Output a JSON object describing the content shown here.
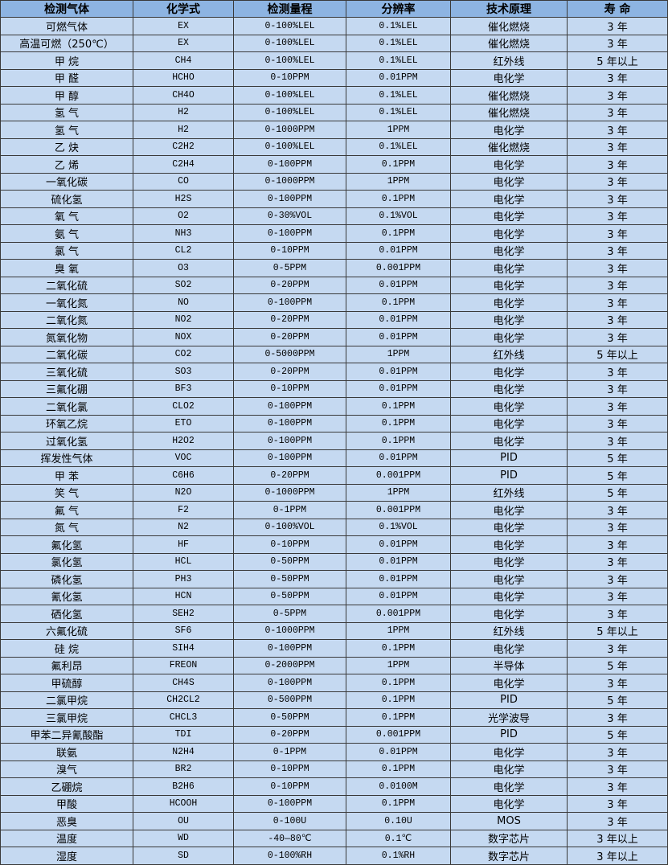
{
  "table": {
    "headers": [
      "检测气体",
      "化学式",
      "检测量程",
      "分辨率",
      "技术原理",
      "寿 命"
    ],
    "rows": [
      [
        "可燃气体",
        "EX",
        "0-100%LEL",
        "0.1%LEL",
        "催化燃烧",
        "3 年"
      ],
      [
        "高温可燃（250℃）",
        "EX",
        "0-100%LEL",
        "0.1%LEL",
        "催化燃烧",
        "3 年"
      ],
      [
        "甲 烷",
        "CH4",
        "0-100%LEL",
        "0.1%LEL",
        "红外线",
        "5 年以上"
      ],
      [
        "甲 醛",
        "HCHO",
        "0-10PPM",
        "0.01PPM",
        "电化学",
        "3 年"
      ],
      [
        "甲 醇",
        "CH4O",
        "0-100%LEL",
        "0.1%LEL",
        "催化燃烧",
        "3 年"
      ],
      [
        "氢 气",
        "H2",
        "0-100%LEL",
        "0.1%LEL",
        "催化燃烧",
        "3 年"
      ],
      [
        "氢 气",
        "H2",
        "0-1000PPM",
        "1PPM",
        "电化学",
        "3 年"
      ],
      [
        "乙 炔",
        "C2H2",
        "0-100%LEL",
        "0.1%LEL",
        "催化燃烧",
        "3 年"
      ],
      [
        "乙 烯",
        "C2H4",
        "0-100PPM",
        "0.1PPM",
        "电化学",
        "3 年"
      ],
      [
        "一氧化碳",
        "CO",
        "0-1000PPM",
        "1PPM",
        "电化学",
        "3 年"
      ],
      [
        "硫化氢",
        "H2S",
        "0-100PPM",
        "0.1PPM",
        "电化学",
        "3 年"
      ],
      [
        "氧 气",
        "O2",
        "0-30%VOL",
        "0.1%VOL",
        "电化学",
        "3 年"
      ],
      [
        "氨 气",
        "NH3",
        "0-100PPM",
        "0.1PPM",
        "电化学",
        "3 年"
      ],
      [
        "氯 气",
        "CL2",
        "0-10PPM",
        "0.01PPM",
        "电化学",
        "3 年"
      ],
      [
        "臭 氧",
        "O3",
        "0-5PPM",
        "0.001PPM",
        "电化学",
        "3 年"
      ],
      [
        "二氧化硫",
        "SO2",
        "0-20PPM",
        "0.01PPM",
        "电化学",
        "3 年"
      ],
      [
        "一氧化氮",
        "NO",
        "0-100PPM",
        "0.1PPM",
        "电化学",
        "3 年"
      ],
      [
        "二氧化氮",
        "NO2",
        "0-20PPM",
        "0.01PPM",
        "电化学",
        "3 年"
      ],
      [
        "氮氧化物",
        "NOX",
        "0-20PPM",
        "0.01PPM",
        "电化学",
        "3 年"
      ],
      [
        "二氧化碳",
        "CO2",
        "0-5000PPM",
        "1PPM",
        "红外线",
        "5 年以上"
      ],
      [
        "三氧化硫",
        "SO3",
        "0-20PPM",
        "0.01PPM",
        "电化学",
        "3 年"
      ],
      [
        "三氟化硼",
        "BF3",
        "0-10PPM",
        "0.01PPM",
        "电化学",
        "3 年"
      ],
      [
        "二氧化氯",
        "CLO2",
        "0-100PPM",
        "0.1PPM",
        "电化学",
        "3 年"
      ],
      [
        "环氧乙烷",
        "ETO",
        "0-100PPM",
        "0.1PPM",
        "电化学",
        "3 年"
      ],
      [
        "过氧化氢",
        "H2O2",
        "0-100PPM",
        "0.1PPM",
        "电化学",
        "3 年"
      ],
      [
        "挥发性气体",
        "VOC",
        "0-100PPM",
        "0.01PPM",
        "PID",
        "5 年"
      ],
      [
        "甲 苯",
        "C6H6",
        "0-20PPM",
        "0.001PPM",
        "PID",
        "5 年"
      ],
      [
        "笑 气",
        "N2O",
        "0-1000PPM",
        "1PPM",
        "红外线",
        "5 年"
      ],
      [
        "氟 气",
        "F2",
        "0-1PPM",
        "0.001PPM",
        "电化学",
        "3 年"
      ],
      [
        "氮 气",
        "N2",
        "0-100%VOL",
        "0.1%VOL",
        "电化学",
        "3 年"
      ],
      [
        "氟化氢",
        "HF",
        "0-10PPM",
        "0.01PPM",
        "电化学",
        "3 年"
      ],
      [
        "氯化氢",
        "HCL",
        "0-50PPM",
        "0.01PPM",
        "电化学",
        "3 年"
      ],
      [
        "磷化氢",
        "PH3",
        "0-50PPM",
        "0.01PPM",
        "电化学",
        "3 年"
      ],
      [
        "氰化氢",
        "HCN",
        "0-50PPM",
        "0.01PPM",
        "电化学",
        "3 年"
      ],
      [
        "硒化氢",
        "SEH2",
        "0-5PPM",
        "0.001PPM",
        "电化学",
        "3 年"
      ],
      [
        "六氟化硫",
        "SF6",
        "0-1000PPM",
        "1PPM",
        "红外线",
        "5 年以上"
      ],
      [
        "硅 烷",
        "SIH4",
        "0-100PPM",
        "0.1PPM",
        "电化学",
        "3 年"
      ],
      [
        "氟利昂",
        "FREON",
        "0-2000PPM",
        "1PPM",
        "半导体",
        "5 年"
      ],
      [
        "甲硫醇",
        "CH4S",
        "0-100PPM",
        "0.1PPM",
        "电化学",
        "3 年"
      ],
      [
        "二氯甲烷",
        "CH2CL2",
        "0-500PPM",
        "0.1PPM",
        "PID",
        "5 年"
      ],
      [
        "三氯甲烷",
        "CHCL3",
        "0-50PPM",
        "0.1PPM",
        "光学波导",
        "3 年"
      ],
      [
        "甲苯二异氰酸酯",
        "TDI",
        "0-20PPM",
        "0.001PPM",
        "PID",
        "5 年"
      ],
      [
        "联氨",
        "N2H4",
        "0-1PPM",
        "0.01PPM",
        "电化学",
        "3 年"
      ],
      [
        "溴气",
        "BR2",
        "0-10PPM",
        "0.1PPM",
        "电化学",
        "3 年"
      ],
      [
        "乙硼烷",
        "B2H6",
        "0-10PPM",
        "0.0100M",
        "电化学",
        "3 年"
      ],
      [
        "甲酸",
        "HCOOH",
        "0-100PPM",
        "0.1PPM",
        "电化学",
        "3 年"
      ],
      [
        "恶臭",
        "OU",
        "0-100U",
        "0.10U",
        "MOS",
        "3 年"
      ],
      [
        "温度",
        "WD",
        "-40—80℃",
        "0.1℃",
        "数字芯片",
        "3 年以上"
      ],
      [
        "湿度",
        "SD",
        "0-100%RH",
        "0.1%RH",
        "数字芯片",
        "3 年以上"
      ]
    ]
  },
  "colors": {
    "header_bg": "#8db4e2",
    "row_bg": "#c5d9f1",
    "border": "#3a3a3a"
  }
}
